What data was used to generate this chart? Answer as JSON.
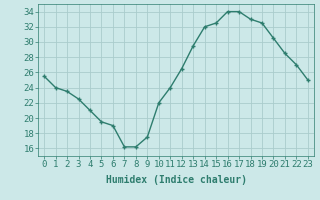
{
  "x": [
    0,
    1,
    2,
    3,
    4,
    5,
    6,
    7,
    8,
    9,
    10,
    11,
    12,
    13,
    14,
    15,
    16,
    17,
    18,
    19,
    20,
    21,
    22,
    23
  ],
  "y": [
    25.5,
    24.0,
    23.5,
    22.5,
    21.0,
    19.5,
    19.0,
    16.2,
    16.2,
    17.5,
    22.0,
    24.0,
    26.5,
    29.5,
    32.0,
    32.5,
    34.0,
    34.0,
    33.0,
    32.5,
    30.5,
    28.5,
    27.0,
    25.0
  ],
  "line_color": "#2e7d6e",
  "marker": "+",
  "bg_color": "#cce8e8",
  "grid_color": "#aacccc",
  "xlabel": "Humidex (Indice chaleur)",
  "xlim": [
    -0.5,
    23.5
  ],
  "ylim": [
    15,
    35
  ],
  "yticks": [
    16,
    18,
    20,
    22,
    24,
    26,
    28,
    30,
    32,
    34
  ],
  "xticks": [
    0,
    1,
    2,
    3,
    4,
    5,
    6,
    7,
    8,
    9,
    10,
    11,
    12,
    13,
    14,
    15,
    16,
    17,
    18,
    19,
    20,
    21,
    22,
    23
  ],
  "label_fontsize": 7,
  "tick_fontsize": 6.5
}
